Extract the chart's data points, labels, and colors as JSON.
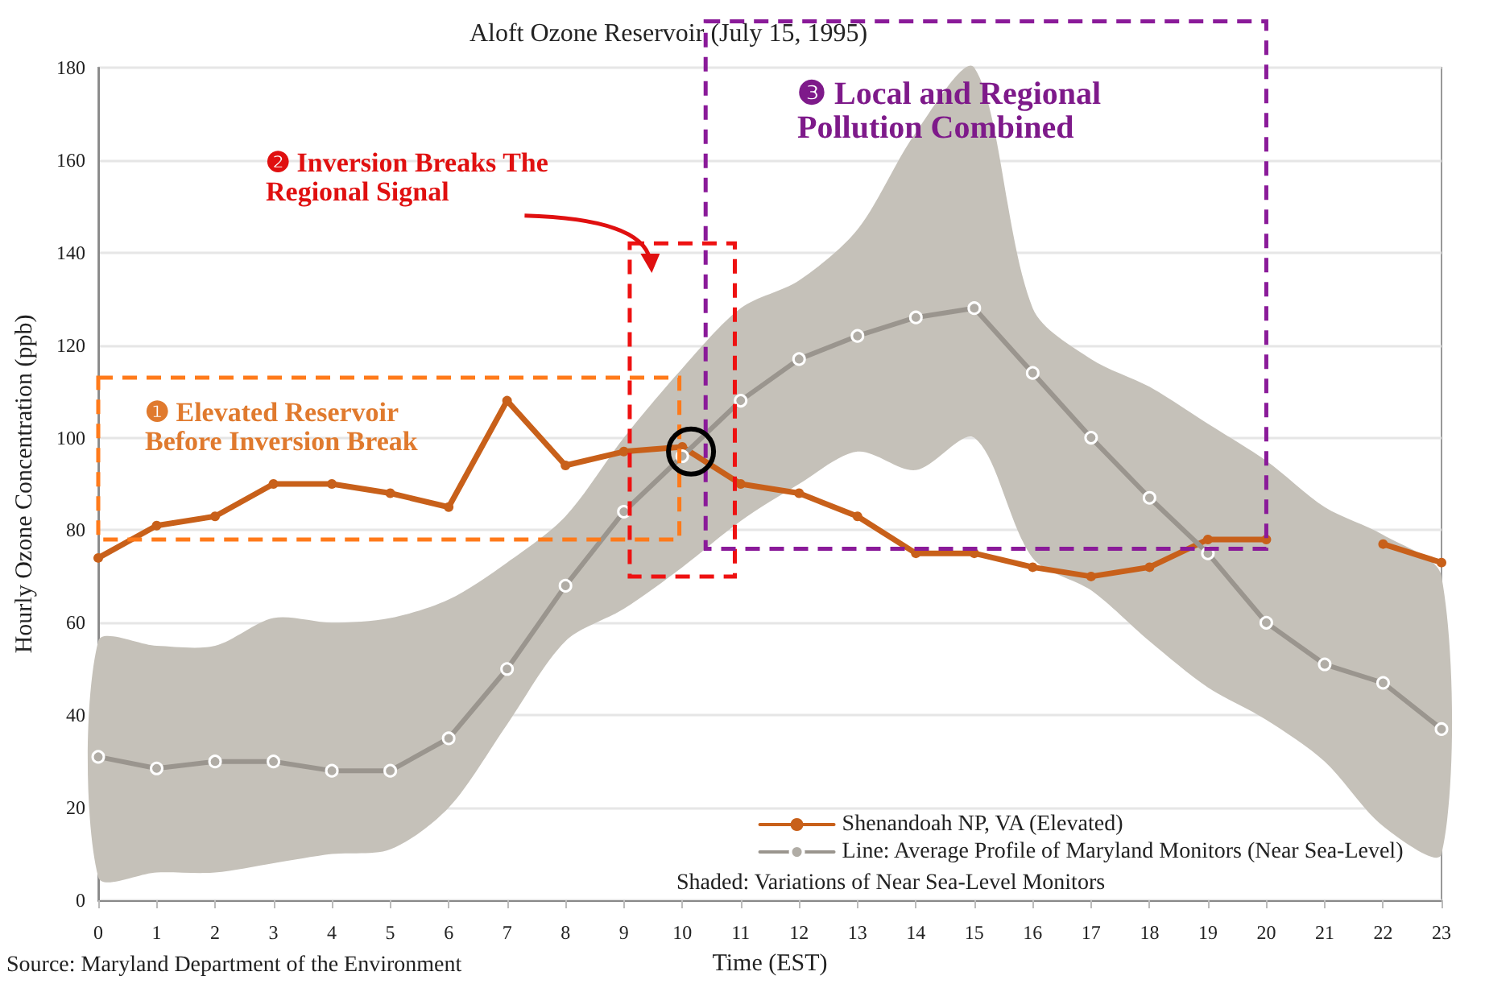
{
  "chart_data": {
    "type": "line",
    "title": "Aloft Ozone Reservoir (July 15, 1995)",
    "xlabel": "Time (EST)",
    "ylabel": "Hourly Ozone Concentration (ppb)",
    "x": [
      0,
      1,
      2,
      3,
      4,
      5,
      6,
      7,
      8,
      9,
      10,
      11,
      12,
      13,
      14,
      15,
      16,
      17,
      18,
      19,
      20,
      21,
      22,
      23
    ],
    "series": [
      {
        "name": "Shenandoah NP, VA (Elevated)",
        "color": "#c8601a",
        "marker": "circle",
        "values": [
          74,
          81,
          83,
          90,
          90,
          88,
          85,
          108,
          94,
          97,
          98,
          90,
          88,
          83,
          75,
          75,
          72,
          70,
          72,
          78,
          78,
          null,
          77,
          73
        ]
      },
      {
        "name": "Line: Average Profile of Maryland Monitors (Near Sea-Level)",
        "color": "#9a958e",
        "marker": "circle",
        "values": [
          31,
          28.5,
          30,
          30,
          28,
          28,
          35,
          50,
          68,
          84,
          96,
          108,
          117,
          122,
          126,
          128,
          114,
          100,
          87,
          75,
          60,
          51,
          47,
          37
        ],
        "lower": [
          5,
          6,
          6,
          8,
          10,
          11,
          20,
          38,
          56,
          63,
          72,
          82,
          90,
          97,
          93,
          100,
          74,
          67,
          56,
          46,
          39,
          30,
          16,
          10
        ],
        "upper": [
          56,
          55,
          55,
          61,
          60,
          61,
          65,
          73,
          83,
          100,
          115,
          128,
          134,
          145,
          166,
          180,
          128,
          117,
          111,
          103,
          95,
          85,
          79,
          70
        ]
      }
    ],
    "xlim": [
      0,
      23
    ],
    "xticks": [
      0,
      1,
      2,
      3,
      4,
      5,
      6,
      7,
      8,
      9,
      10,
      11,
      12,
      13,
      14,
      15,
      16,
      17,
      18,
      19,
      20,
      21,
      22,
      23
    ],
    "ylim": [
      0,
      180
    ],
    "yticks": [
      0,
      20,
      40,
      60,
      80,
      100,
      120,
      140,
      160,
      180
    ],
    "grid": "y",
    "legend": "bottom right",
    "annotations": [
      "❶ Elevated Reservoir Before Inversion Break",
      "❷ Inversion Breaks The Regional Signal",
      "❸ Local and Regional Pollution Combined",
      "Shaded: Variations of Near Sea-Level Monitors",
      "Source: Maryland Department of the Environment"
    ]
  }
}
